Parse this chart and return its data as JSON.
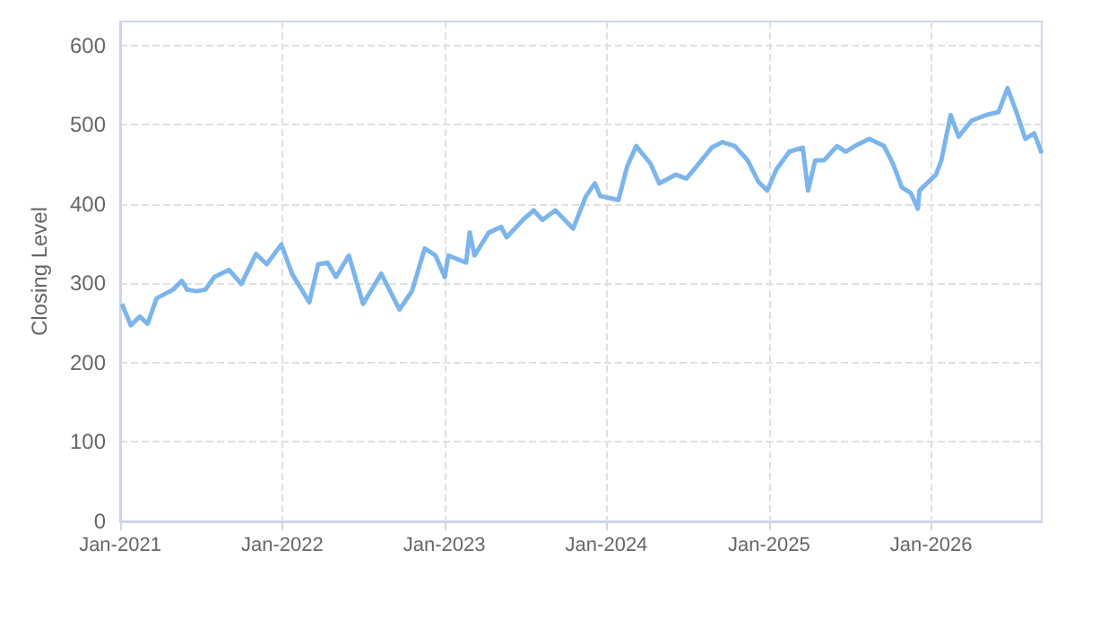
{
  "chart_data": {
    "type": "line",
    "ylabel": "Closing Level",
    "xlim": [
      "2021-01-01",
      "2026-09-07"
    ],
    "xticks": [
      {
        "value": "2021-01-01",
        "label": "Jan-2021"
      },
      {
        "value": "2022-01-01",
        "label": "Jan-2022"
      },
      {
        "value": "2023-01-01",
        "label": "Jan-2023"
      },
      {
        "value": "2024-01-01",
        "label": "Jan-2024"
      },
      {
        "value": "2025-01-01",
        "label": "Jan-2025"
      },
      {
        "value": "2026-01-01",
        "label": "Jan-2026"
      }
    ],
    "ylim": [
      0,
      630
    ],
    "yticks": [
      0,
      100,
      200,
      300,
      400,
      500,
      600
    ],
    "grid": true,
    "marker": "none",
    "line_style": "solid",
    "series": [
      {
        "color": "#7cb5ec",
        "x": [
          "2021-01-05",
          "2021-01-25",
          "2021-02-14",
          "2021-03-04",
          "2021-03-24",
          "2021-04-30",
          "2021-05-20",
          "2021-06-01",
          "2021-06-22",
          "2021-07-12",
          "2021-08-01",
          "2021-09-03",
          "2021-10-01",
          "2021-11-03",
          "2021-11-27",
          "2021-12-30",
          "2022-01-23",
          "2022-03-03",
          "2022-03-23",
          "2022-04-13",
          "2022-05-02",
          "2022-05-31",
          "2022-07-02",
          "2022-08-12",
          "2022-09-22",
          "2022-10-20",
          "2022-11-18",
          "2022-12-12",
          "2023-01-02",
          "2023-01-10",
          "2023-02-19",
          "2023-02-27",
          "2023-03-10",
          "2023-04-11",
          "2023-05-09",
          "2023-05-21",
          "2023-06-27",
          "2023-07-21",
          "2023-08-10",
          "2023-09-08",
          "2023-10-18",
          "2023-11-16",
          "2023-12-06",
          "2023-12-18",
          "2024-01-28",
          "2024-02-17",
          "2024-03-08",
          "2024-04-09",
          "2024-04-29",
          "2024-06-05",
          "2024-06-29",
          "2024-07-27",
          "2024-08-25",
          "2024-09-18",
          "2024-10-16",
          "2024-11-14",
          "2024-12-08",
          "2024-12-28",
          "2025-01-18",
          "2025-02-16",
          "2025-03-18",
          "2025-03-30",
          "2025-04-15",
          "2025-05-05",
          "2025-06-03",
          "2025-06-23",
          "2025-07-13",
          "2025-08-15",
          "2025-09-17",
          "2025-10-07",
          "2025-10-27",
          "2025-11-16",
          "2025-12-02",
          "2025-12-06",
          "2026-01-12",
          "2026-01-24",
          "2026-02-14",
          "2026-03-04",
          "2026-04-02",
          "2026-05-04",
          "2026-06-02",
          "2026-06-22",
          "2026-07-12",
          "2026-08-01",
          "2026-08-21",
          "2026-09-07"
        ],
        "values": [
          274,
          247,
          258,
          249,
          281,
          292,
          303,
          292,
          290,
          292,
          308,
          317,
          299,
          337,
          324,
          349,
          312,
          276,
          324,
          326,
          308,
          335,
          274,
          312,
          267,
          290,
          344,
          335,
          308,
          335,
          326,
          364,
          335,
          364,
          371,
          358,
          380,
          392,
          380,
          392,
          369,
          410,
          426,
          410,
          405,
          448,
          473,
          451,
          426,
          437,
          432,
          451,
          471,
          478,
          473,
          455,
          428,
          417,
          444,
          466,
          471,
          417,
          455,
          455,
          473,
          466,
          473,
          482,
          473,
          451,
          421,
          414,
          394,
          417,
          437,
          455,
          512,
          485,
          505,
          512,
          516,
          546,
          516,
          482,
          489,
          464
        ]
      }
    ]
  }
}
